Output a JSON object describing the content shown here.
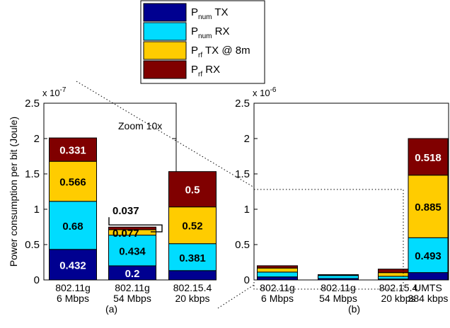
{
  "chart_data": [
    {
      "type": "bar",
      "stacked": true,
      "panel_label": "(a)",
      "categories": [
        [
          "802.11g",
          "6 Mbps"
        ],
        [
          "802.11g",
          "54 Mbps"
        ],
        [
          "802.15.4",
          "20 kbps"
        ]
      ],
      "y_exponent": "x 10",
      "y_exponent_power": "-7",
      "ylabel": "Power consumption per bit (Joule)",
      "ylim": [
        0,
        2.5
      ],
      "yticks": [
        "0",
        "0.5",
        "1",
        "1.5",
        "2",
        "2.5"
      ],
      "series": [
        {
          "name": "P_num TX",
          "values": [
            0.432,
            0.2,
            0.132
          ],
          "labels": [
            "0.432",
            "0.2",
            "0.132"
          ]
        },
        {
          "name": "P_num RX",
          "values": [
            0.68,
            0.434,
            0.381
          ],
          "labels": [
            "0.68",
            "0.434",
            "0.381"
          ]
        },
        {
          "name": "P_rf TX @ 8m",
          "values": [
            0.566,
            0.077,
            0.52
          ],
          "labels": [
            "0.566",
            "0.077",
            "0.52"
          ]
        },
        {
          "name": "P_rf RX",
          "values": [
            0.331,
            0.037,
            0.5
          ],
          "labels": [
            "0.331",
            "0.037",
            "0.5"
          ]
        }
      ],
      "annotation": "Zoom 10x"
    },
    {
      "type": "bar",
      "stacked": true,
      "panel_label": "(b)",
      "categories": [
        [
          "802.11g",
          "6 Mbps"
        ],
        [
          "802.11g",
          "54 Mbps"
        ],
        [
          "802.15.4",
          "20 kbps"
        ],
        [
          "UMTS",
          "384 kbps"
        ]
      ],
      "y_exponent": "x 10",
      "y_exponent_power": "-6",
      "ylim": [
        0,
        2.5
      ],
      "yticks": [
        "0",
        "0.5",
        "1",
        "1.5",
        "2",
        "2.5"
      ],
      "series": [
        {
          "name": "P_num TX",
          "values": [
            0.0432,
            0.02,
            0.0132,
            0.104
          ],
          "labels": [
            "",
            "",
            "",
            "0.104"
          ]
        },
        {
          "name": "P_num RX",
          "values": [
            0.068,
            0.0434,
            0.0381,
            0.493
          ],
          "labels": [
            "",
            "",
            "",
            "0.493"
          ]
        },
        {
          "name": "P_rf TX @ 8m",
          "values": [
            0.0566,
            0.0077,
            0.052,
            0.885
          ],
          "labels": [
            "",
            "",
            "",
            "0.885"
          ]
        },
        {
          "name": "P_rf RX",
          "values": [
            0.0331,
            0.0037,
            0.05,
            0.518
          ],
          "labels": [
            "",
            "",
            "",
            "0.518"
          ]
        }
      ]
    }
  ],
  "legend": {
    "placement": "top-center",
    "items": [
      {
        "base": "P",
        "sub": "num",
        "rest": " TX",
        "color": "#000090"
      },
      {
        "base": "P",
        "sub": "num",
        "rest": " RX",
        "color": "#00dcff"
      },
      {
        "base": "P",
        "sub": "rf",
        "rest": " TX @ 8m",
        "color": "#ffcc00"
      },
      {
        "base": "P",
        "sub": "rf",
        "rest": " RX",
        "color": "#800000"
      }
    ]
  },
  "colors": [
    "#000090",
    "#00dcff",
    "#ffcc00",
    "#800000"
  ]
}
